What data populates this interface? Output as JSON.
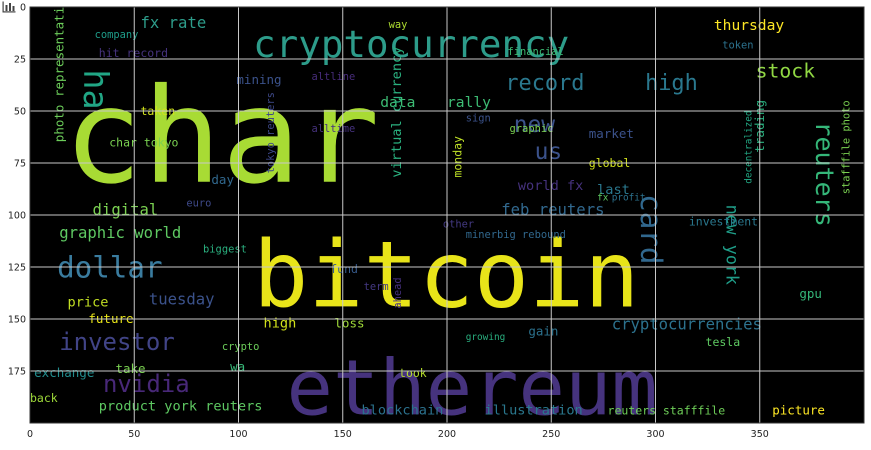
{
  "chart_data": {
    "type": "wordcloud",
    "title": "",
    "xlabel": "",
    "ylabel": "",
    "xlim": [
      0,
      400
    ],
    "ylim": [
      200,
      0
    ],
    "xticks": [
      "0",
      "50",
      "100",
      "150",
      "200",
      "250",
      "300",
      "350"
    ],
    "yticks": [
      "0",
      "25",
      "50",
      "75",
      "100",
      "125",
      "150",
      "175"
    ],
    "grid": true,
    "background": "#000000",
    "colormap": "viridis",
    "words": [
      {
        "text": "char",
        "x": 16,
        "y": 84,
        "size": 63,
        "color": "#a8db34"
      },
      {
        "text": "bitcoin",
        "x": 107,
        "y": 144,
        "size": 44,
        "color": "#e8e419"
      },
      {
        "text": "ethereum",
        "x": 123,
        "y": 196,
        "size": 37,
        "color": "#46337e"
      },
      {
        "text": "cryptocurrency",
        "x": 107,
        "y": 24,
        "size": 18,
        "color": "#2d9c8a"
      },
      {
        "text": "reuters",
        "x": 377,
        "y": 55,
        "size": 12,
        "color": "#35b779",
        "rotate": 90
      },
      {
        "text": "dollar",
        "x": 13,
        "y": 130,
        "size": 14,
        "color": "#3a7c9f"
      },
      {
        "text": "investor",
        "x": 14,
        "y": 165,
        "size": 11.5,
        "color": "#414487"
      },
      {
        "text": "nvidia",
        "x": 35,
        "y": 185,
        "size": 11.5,
        "color": "#482878"
      },
      {
        "text": "record",
        "x": 228,
        "y": 40,
        "size": 10.5,
        "color": "#2a788e"
      },
      {
        "text": "high",
        "x": 295,
        "y": 40,
        "size": 10.5,
        "color": "#2a788e"
      },
      {
        "text": "stock",
        "x": 348,
        "y": 34,
        "size": 9.5,
        "color": "#90d743"
      },
      {
        "text": "new",
        "x": 232,
        "y": 60,
        "size": 11,
        "color": "#3b528b"
      },
      {
        "text": "us",
        "x": 242,
        "y": 73,
        "size": 11,
        "color": "#3b528b"
      },
      {
        "text": "ha",
        "x": 26,
        "y": 30,
        "size": 16,
        "color": "#21a685",
        "rotate": 90
      },
      {
        "text": "card",
        "x": 293,
        "y": 90,
        "size": 14,
        "color": "#31688e",
        "rotate": 90
      },
      {
        "text": "new york",
        "x": 334,
        "y": 95,
        "size": 8,
        "color": "#1f9e89",
        "rotate": 90
      },
      {
        "text": "feb reuters",
        "x": 226,
        "y": 100,
        "size": 7.5,
        "color": "#31688e"
      },
      {
        "text": "graphic world",
        "x": 14,
        "y": 111,
        "size": 7.5,
        "color": "#5ec962"
      },
      {
        "text": "digital",
        "x": 30,
        "y": 100,
        "size": 7.5,
        "color": "#7ad151"
      },
      {
        "text": "tuesday",
        "x": 57,
        "y": 143,
        "size": 7.5,
        "color": "#3b528b"
      },
      {
        "text": "fx rate",
        "x": 53,
        "y": 10,
        "size": 7.5,
        "color": "#2d9c8a"
      },
      {
        "text": "thursday",
        "x": 328,
        "y": 11,
        "size": 7,
        "color": "#fde725"
      },
      {
        "text": "data",
        "x": 168,
        "y": 48,
        "size": 7,
        "color": "#3dbc74"
      },
      {
        "text": "rally",
        "x": 200,
        "y": 48,
        "size": 7,
        "color": "#3dbc74"
      },
      {
        "text": "market",
        "x": 268,
        "y": 63,
        "size": 6,
        "color": "#3b528b"
      },
      {
        "text": "global",
        "x": 268,
        "y": 77,
        "size": 5.5,
        "color": "#d2e21b"
      },
      {
        "text": "last",
        "x": 272,
        "y": 90,
        "size": 6.5,
        "color": "#2a788e"
      },
      {
        "text": "world fx",
        "x": 234,
        "y": 88,
        "size": 6.5,
        "color": "#46327e"
      },
      {
        "text": "cryptocurrencies",
        "x": 279,
        "y": 155,
        "size": 7.5,
        "color": "#2c728e"
      },
      {
        "text": "tesla",
        "x": 324,
        "y": 163,
        "size": 5.5,
        "color": "#5ec962"
      },
      {
        "text": "gain",
        "x": 239,
        "y": 158,
        "size": 6,
        "color": "#2c728e"
      },
      {
        "text": "picture",
        "x": 356,
        "y": 196,
        "size": 6,
        "color": "#fde725"
      },
      {
        "text": "illustration",
        "x": 218,
        "y": 196,
        "size": 6.5,
        "color": "#2a788e"
      },
      {
        "text": "reuters stafffile",
        "x": 277,
        "y": 196,
        "size": 5.5,
        "color": "#6ece58"
      },
      {
        "text": "blockchain",
        "x": 159,
        "y": 196,
        "size": 6.5,
        "color": "#2c728e"
      },
      {
        "text": "product york reuters",
        "x": 33,
        "y": 194,
        "size": 6.5,
        "color": "#5ec962"
      },
      {
        "text": "price",
        "x": 18,
        "y": 144,
        "size": 6.5,
        "color": "#c2df23"
      },
      {
        "text": "future",
        "x": 28,
        "y": 152,
        "size": 6,
        "color": "#e8e419"
      },
      {
        "text": "high",
        "x": 112,
        "y": 154,
        "size": 6.5,
        "color": "#d2e21b"
      },
      {
        "text": "loss",
        "x": 146,
        "y": 154,
        "size": 6,
        "color": "#a0da39"
      },
      {
        "text": "take",
        "x": 41,
        "y": 176,
        "size": 6,
        "color": "#7ad151"
      },
      {
        "text": "exchange",
        "x": 2,
        "y": 178,
        "size": 6,
        "color": "#228c8d"
      },
      {
        "text": "back",
        "x": 0,
        "y": 190,
        "size": 5.5,
        "color": "#9fda3a"
      },
      {
        "text": "virtual currency",
        "x": 178,
        "y": 82,
        "size": 6.5,
        "color": "#2ab07f",
        "rotate": -90
      },
      {
        "text": "photo representation",
        "x": 16,
        "y": 65,
        "size": 6,
        "color": "#6ccd5a",
        "rotate": -90
      },
      {
        "text": "monday",
        "x": 207,
        "y": 82,
        "size": 5.5,
        "color": "#bddf26",
        "rotate": -90
      },
      {
        "text": "investment",
        "x": 316,
        "y": 105,
        "size": 5.5,
        "color": "#2a788e"
      },
      {
        "text": "trading",
        "x": 352,
        "y": 70,
        "size": 6,
        "color": "#2ab07f",
        "rotate": -90
      },
      {
        "text": "mining",
        "x": 99,
        "y": 37,
        "size": 6,
        "color": "#3b528b"
      },
      {
        "text": "hit record",
        "x": 33,
        "y": 24,
        "size": 5.5,
        "color": "#46337e"
      },
      {
        "text": "company",
        "x": 31,
        "y": 15,
        "size": 5,
        "color": "#1e9c89"
      },
      {
        "text": "char tokyo",
        "x": 38,
        "y": 67,
        "size": 5.5,
        "color": "#7ad151"
      },
      {
        "text": "taken",
        "x": 53,
        "y": 52,
        "size": 5.5,
        "color": "#d2e21b"
      },
      {
        "text": "graphic",
        "x": 230,
        "y": 60,
        "size": 5,
        "color": "#7ad151"
      },
      {
        "text": "token",
        "x": 332,
        "y": 20,
        "size": 5,
        "color": "#2c728e"
      },
      {
        "text": "day",
        "x": 87,
        "y": 85,
        "size": 6,
        "color": "#31688e"
      },
      {
        "text": "euro",
        "x": 75,
        "y": 96,
        "size": 5,
        "color": "#3e4989"
      },
      {
        "text": "biggest",
        "x": 83,
        "y": 118,
        "size": 5,
        "color": "#2ab07f"
      },
      {
        "text": "fund",
        "x": 144,
        "y": 128,
        "size": 5.5,
        "color": "#375b8d"
      },
      {
        "text": "term",
        "x": 160,
        "y": 136,
        "size": 5,
        "color": "#443983"
      },
      {
        "text": "ahead",
        "x": 178,
        "y": 145,
        "size": 5,
        "color": "#46307e",
        "rotate": -90
      },
      {
        "text": "took",
        "x": 177,
        "y": 178,
        "size": 5.5,
        "color": "#b5de2b"
      },
      {
        "text": "crypto",
        "x": 92,
        "y": 165,
        "size": 5,
        "color": "#6ccd5a"
      },
      {
        "text": "wa",
        "x": 96,
        "y": 175,
        "size": 6,
        "color": "#37b878"
      },
      {
        "text": "gpu",
        "x": 369,
        "y": 140,
        "size": 6,
        "color": "#35b779"
      },
      {
        "text": "stafffile photo",
        "x": 393,
        "y": 90,
        "size": 5,
        "color": "#7ad151",
        "rotate": -90
      },
      {
        "text": "decentralized",
        "x": 346,
        "y": 85,
        "size": 4.5,
        "color": "#22a884",
        "rotate": -90
      },
      {
        "text": "tokyo reuters",
        "x": 117,
        "y": 80,
        "size": 5,
        "color": "#3e4989",
        "rotate": -90
      },
      {
        "text": "minerbig rebound",
        "x": 209,
        "y": 111,
        "size": 5,
        "color": "#31688e"
      },
      {
        "text": "other",
        "x": 198,
        "y": 106,
        "size": 5,
        "color": "#443a83"
      },
      {
        "text": "growing",
        "x": 209,
        "y": 160,
        "size": 4.5,
        "color": "#29af7f"
      },
      {
        "text": "financial",
        "x": 229,
        "y": 23,
        "size": 5,
        "color": "#3dbc74"
      },
      {
        "text": "sign",
        "x": 209,
        "y": 55,
        "size": 5,
        "color": "#3b528b"
      },
      {
        "text": "way",
        "x": 172,
        "y": 10,
        "size": 5,
        "color": "#addc30"
      },
      {
        "text": "altline",
        "x": 135,
        "y": 35,
        "size": 5,
        "color": "#472c7a"
      },
      {
        "text": "profit",
        "x": 279,
        "y": 93,
        "size": 4.5,
        "color": "#2c728e"
      },
      {
        "text": "fx",
        "x": 272,
        "y": 93,
        "size": 4.5,
        "color": "#5ec962"
      },
      {
        "text": "alltime",
        "x": 135,
        "y": 60,
        "size": 5,
        "color": "#46327e"
      }
    ]
  }
}
